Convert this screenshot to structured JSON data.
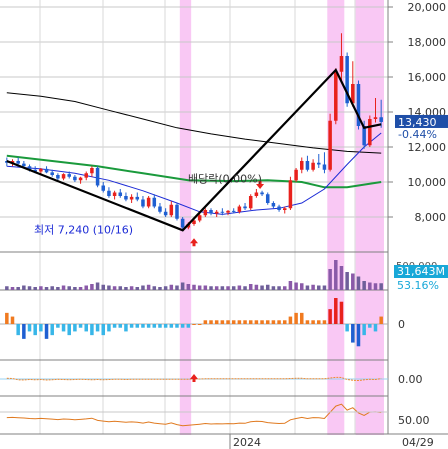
{
  "chart_data": {
    "type": "candlestick",
    "x_start_label": "2024",
    "x_end_label": "04/29",
    "price_axis": {
      "ticks": [
        8000,
        10000,
        12000,
        14000,
        16000,
        18000,
        20000
      ],
      "tick_labels": [
        "8,000",
        "10,000",
        "12,000",
        "14,000",
        "16,000",
        "18,000",
        "20,000"
      ],
      "ylim": [
        6000,
        20400
      ]
    },
    "current_price": {
      "label": "13,430",
      "change": "-0.44%",
      "color": "#1f4fa8"
    },
    "annotations": {
      "low": "최저 7,240 (10/16)",
      "dividend": "배당락(0.00%)"
    },
    "candles": [
      [
        11200,
        11400,
        10900,
        11100
      ],
      [
        11100,
        11300,
        10900,
        11200
      ],
      [
        11200,
        11400,
        11000,
        11050
      ],
      [
        11050,
        11200,
        10800,
        10900
      ],
      [
        10900,
        11000,
        10600,
        10700
      ],
      [
        10700,
        10900,
        10500,
        10600
      ],
      [
        10600,
        10800,
        10400,
        10750
      ],
      [
        10750,
        10900,
        10500,
        10550
      ],
      [
        10550,
        10700,
        10300,
        10400
      ],
      [
        10400,
        10500,
        10100,
        10200
      ],
      [
        10200,
        10500,
        10100,
        10450
      ],
      [
        10450,
        10600,
        10200,
        10300
      ],
      [
        10300,
        10400,
        10000,
        10100
      ],
      [
        10100,
        10300,
        9900,
        10250
      ],
      [
        10250,
        10600,
        10100,
        10500
      ],
      [
        10500,
        10900,
        10300,
        10800
      ],
      [
        10800,
        10900,
        9700,
        9800
      ],
      [
        9800,
        10000,
        9400,
        9500
      ],
      [
        9500,
        9700,
        9100,
        9200
      ],
      [
        9200,
        9500,
        9000,
        9400
      ],
      [
        9400,
        9600,
        9100,
        9200
      ],
      [
        9200,
        9400,
        8900,
        9000
      ],
      [
        9000,
        9300,
        8800,
        9150
      ],
      [
        9150,
        9400,
        8900,
        9000
      ],
      [
        9000,
        9200,
        8500,
        8600
      ],
      [
        8600,
        9200,
        8500,
        9100
      ],
      [
        9100,
        9300,
        8500,
        8600
      ],
      [
        8600,
        8800,
        8200,
        8300
      ],
      [
        8300,
        8500,
        8000,
        8100
      ],
      [
        8100,
        8900,
        8000,
        8700
      ],
      [
        8700,
        8800,
        7800,
        7900
      ],
      [
        7900,
        8000,
        7240,
        7400
      ],
      [
        7400,
        7700,
        7300,
        7600
      ],
      [
        7600,
        7900,
        7500,
        7800
      ],
      [
        7800,
        8200,
        7700,
        8100
      ],
      [
        8100,
        8500,
        8000,
        8400
      ],
      [
        8400,
        8500,
        8100,
        8200
      ],
      [
        8200,
        8400,
        8000,
        8300
      ],
      [
        8300,
        8500,
        8100,
        8250
      ],
      [
        8250,
        8400,
        8100,
        8350
      ],
      [
        8350,
        8500,
        8200,
        8300
      ],
      [
        8300,
        8700,
        8200,
        8600
      ],
      [
        8600,
        8800,
        8400,
        8500
      ],
      [
        8500,
        9300,
        8400,
        9200
      ],
      [
        9200,
        9600,
        9100,
        9400
      ],
      [
        9400,
        9500,
        9200,
        9300
      ],
      [
        9300,
        9400,
        8700,
        8800
      ],
      [
        8800,
        8900,
        8500,
        8600
      ],
      [
        8600,
        8700,
        8300,
        8400
      ],
      [
        8400,
        8600,
        8200,
        8500
      ],
      [
        8500,
        10300,
        8400,
        10100
      ],
      [
        10100,
        10800,
        10000,
        10700
      ],
      [
        10700,
        11400,
        10500,
        11200
      ],
      [
        11200,
        11500,
        10600,
        10700
      ],
      [
        10700,
        11300,
        10600,
        11100
      ],
      [
        11100,
        11600,
        10800,
        11000
      ],
      [
        11000,
        11700,
        10500,
        10700
      ],
      [
        10700,
        13900,
        10600,
        13500
      ],
      [
        13500,
        16500,
        13300,
        16300
      ],
      [
        16300,
        18500,
        15800,
        17200
      ],
      [
        17200,
        17400,
        14300,
        14500
      ],
      [
        14500,
        16900,
        14300,
        15600
      ],
      [
        15600,
        15800,
        13000,
        13200
      ],
      [
        13200,
        13500,
        11900,
        12100
      ],
      [
        12100,
        13800,
        12000,
        13600
      ],
      [
        13600,
        14800,
        13400,
        13700
      ],
      [
        13700,
        14700,
        13100,
        13430
      ]
    ],
    "ma_short": [
      [
        0,
        10900
      ],
      [
        6,
        10750
      ],
      [
        12,
        10500
      ],
      [
        18,
        10100
      ],
      [
        24,
        9500
      ],
      [
        30,
        8800
      ],
      [
        34,
        8300
      ],
      [
        38,
        8150
      ],
      [
        44,
        8400
      ],
      [
        48,
        8500
      ],
      [
        52,
        8800
      ],
      [
        56,
        9600
      ],
      [
        60,
        11000
      ],
      [
        63,
        12000
      ],
      [
        66,
        12800
      ]
    ],
    "ma_mid": [
      [
        0,
        11500
      ],
      [
        8,
        11200
      ],
      [
        16,
        10900
      ],
      [
        24,
        10500
      ],
      [
        32,
        10100
      ],
      [
        40,
        10050
      ],
      [
        46,
        10100
      ],
      [
        52,
        10000
      ],
      [
        56,
        9700
      ],
      [
        60,
        9700
      ],
      [
        66,
        10000
      ]
    ],
    "ma_long": [
      [
        0,
        15100
      ],
      [
        6,
        14900
      ],
      [
        12,
        14600
      ],
      [
        18,
        14100
      ],
      [
        24,
        13600
      ],
      [
        30,
        13100
      ],
      [
        36,
        12750
      ],
      [
        42,
        12450
      ],
      [
        48,
        12200
      ],
      [
        54,
        11950
      ],
      [
        60,
        11750
      ],
      [
        66,
        11650
      ]
    ],
    "zigzag": [
      [
        0,
        11200
      ],
      [
        31,
        7240
      ],
      [
        58,
        16400
      ],
      [
        63,
        13100
      ],
      [
        66,
        13300
      ]
    ],
    "highlight_bands": [
      [
        31,
        32
      ],
      [
        57,
        59
      ],
      [
        62,
        66
      ]
    ],
    "volume_panel": {
      "labels": [
        "500,000",
        "31,643M",
        "53.16%"
      ],
      "values": [
        5,
        4,
        4,
        6,
        5,
        4,
        5,
        4,
        5,
        4,
        6,
        5,
        4,
        4,
        6,
        8,
        10,
        7,
        6,
        5,
        5,
        4,
        5,
        4,
        6,
        7,
        5,
        4,
        5,
        7,
        6,
        10,
        8,
        7,
        6,
        6,
        5,
        5,
        5,
        5,
        5,
        6,
        5,
        8,
        7,
        6,
        7,
        5,
        5,
        5,
        12,
        10,
        9,
        6,
        7,
        6,
        6,
        28,
        40,
        32,
        24,
        22,
        18,
        12,
        10,
        9,
        9
      ]
    },
    "oscillator_panel": {
      "zero_label": "0",
      "values": [
        3,
        2,
        -3,
        -4,
        -2,
        -3,
        -2,
        -4,
        -3,
        -1,
        -2,
        -3,
        -2,
        -1,
        -2,
        -3,
        -2,
        -3,
        -2,
        -1,
        -1,
        -2,
        -1,
        -1,
        -1,
        -1,
        -1,
        -1,
        -1,
        -1,
        -1,
        -1,
        -1,
        0,
        0,
        1,
        1,
        1,
        1,
        1,
        1,
        1,
        1,
        1,
        1,
        1,
        1,
        1,
        1,
        1,
        2,
        3,
        3,
        1,
        1,
        1,
        1,
        4,
        7,
        6,
        -2,
        -5,
        -6,
        -3,
        -1,
        -2,
        2
      ]
    },
    "panel3": {
      "zero_label": "0.00"
    },
    "panel4": {
      "label": "50.00"
    }
  }
}
